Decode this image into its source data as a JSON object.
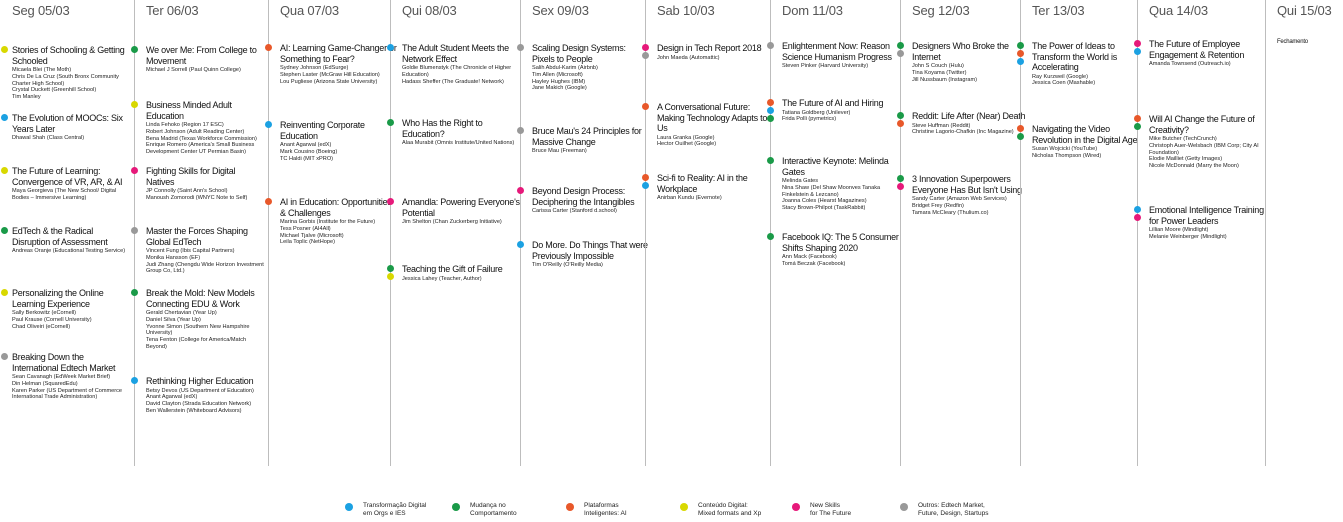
{
  "days": [
    {
      "label": "Seg 05/03",
      "sessions": [
        {
          "colors": [
            "#d8d800"
          ],
          "title": "Stories of Schooling & Getting Schooled",
          "speakers": [
            "Micaela Blei (The Moth)",
            "Chris De La Cruz (South Bronx Community Charter High School)",
            "Crystal Duckett (Greenhill School)",
            "Tim Manley"
          ]
        },
        {
          "colors": [
            "#1ba1e2"
          ],
          "title": "The Evolution of MOOCs: Six Years Later",
          "speakers": [
            "Dhawal Shah (Class Central)"
          ]
        },
        {
          "colors": [
            "#d8d800"
          ],
          "title": "The Future of Learning: Convergence of VR, AR, & AI",
          "speakers": [
            "Maya Georgieva (The New School/ Digital Bodies – Immersive Learning)"
          ]
        },
        {
          "colors": [
            "#1a9a48"
          ],
          "title": "EdTech & the Radical Disruption of Assessment",
          "speakers": [
            "Andreas Oranje (Educational Testing Service)"
          ]
        },
        {
          "colors": [
            "#d8d800"
          ],
          "title": "Personalizing the Online Learning Experience",
          "speakers": [
            "Sally Berkowitz (eCornell)",
            "Paul Krause (Cornell University)",
            "Chad Oliveiri (eCornell)"
          ]
        },
        {
          "colors": [
            "#999999"
          ],
          "title": "Breaking Down the International Edtech Market",
          "speakers": [
            "Sean Cavanagh (EdWeek Market Brief)",
            "Din Helman (SquaredEdu)",
            "Karen Parker (US Department of Commerce International Trade Administration)"
          ]
        }
      ]
    },
    {
      "label": "Ter 06/03",
      "sessions": [
        {
          "colors": [
            "#1a9a48"
          ],
          "title": "We over Me: From College to Movement",
          "speakers": [
            "Michael J Sorrell (Paul Quinn College)"
          ]
        },
        {
          "colors": [
            "#d8d800"
          ],
          "title": "Business Minded Adult Education",
          "speakers": [
            "Linda Fehoko (Region 17 ESC)",
            "Robert Johnson (Adult Reading Center)",
            "Bena Madrid (Texas Workforce Commission)",
            "Enrique Romero (America's Small Business Development Center UT Permian Basin)"
          ]
        },
        {
          "colors": [
            "#e6197a"
          ],
          "title": "Fighting Skills for Digital Natives",
          "speakers": [
            "JP Connolly (Saint Ann's School)",
            "Manoush Zomorodi (WNYC Note to Self)"
          ]
        },
        {
          "colors": [
            "#999999"
          ],
          "title": "Master the Forces Shaping Global EdTech",
          "speakers": [
            "Vincent Fung (Ibis Capital Partners)",
            "Monika Hansson (EF)",
            "Judi Zhang (Chengdu Wide Horizon Investment Group Co, Ltd.)"
          ]
        },
        {
          "colors": [
            "#1a9a48"
          ],
          "title": "Break the Mold: New Models Connecting EDU & Work",
          "speakers": [
            "Gerald Chertavian (Year Up)",
            "Daniel Silva (Year Up)",
            "Yvonne Simon (Southern New Hampshire University)",
            "Tena Fenton (College for America/Match Beyond)"
          ]
        },
        {
          "colors": [
            "#1ba1e2"
          ],
          "title": "Rethinking Higher Education",
          "speakers": [
            "Betsy Devos (US Department of Education)",
            "Anant Agarwal (edX)",
            "David Clayton (Strada Education Network)",
            "Ben Wallerstein (Whiteboard Advisors)"
          ]
        }
      ]
    },
    {
      "label": "Qua 07/03",
      "sessions": [
        {
          "colors": [
            "#e8582a"
          ],
          "title": "AI: Learning Game-Changer or Something to Fear?",
          "speakers": [
            "Sydney Johnson (EdSurge)",
            "Stephen Laster (McGraw Hill Education)",
            "Lou Pugliese (Arizona State University)"
          ]
        },
        {
          "colors": [
            "#1ba1e2"
          ],
          "title": "Reinventing Corporate Education",
          "speakers": [
            "Anant Agarwal (edX)",
            "Mark Cousino (Boeing)",
            "TC Haldi (MIT xPRO)"
          ]
        },
        {
          "colors": [
            "#e8582a"
          ],
          "title": "AI in Education: Opportunities & Challenges",
          "speakers": [
            "Marina Gorbis (Institute for the Future)",
            "Tess Posner (AI4All)",
            "Michael Tjalve (Microsoft)",
            "Leila Toplic (NetHope)"
          ]
        }
      ]
    },
    {
      "label": "Qui 08/03",
      "sessions": [
        {
          "colors": [
            "#1ba1e2"
          ],
          "title": "The Adult Student Meets the Network Effect",
          "speakers": [
            "Goldie Blumenstyk (The Chronicle of Higher Education)",
            "Hadass Sheffer (The Graduate! Network)"
          ]
        },
        {
          "colors": [
            "#1a9a48"
          ],
          "title": "Who Has the Right to Education?",
          "speakers": [
            "Alaa Murabit (Omnis Institute/United Nations)"
          ]
        },
        {
          "colors": [
            "#e6197a"
          ],
          "title": "Amandla: Powering Everyone's Potential",
          "speakers": [
            "Jim Shelton (Chan Zuckerberg Initiative)"
          ]
        },
        {
          "colors": [
            "#1a9a48",
            "#d8d800"
          ],
          "title": "Teaching the Gift of Failure",
          "speakers": [
            "Jessica Lahey (Teacher, Author)"
          ]
        }
      ]
    },
    {
      "label": "Sex 09/03",
      "sessions": [
        {
          "colors": [
            "#999999"
          ],
          "title": "Scaling Design Systems: Pixels to People",
          "speakers": [
            "Salih Abdul-Karim (Airbnb)",
            "Tim Allen (Microsoft)",
            "Hayley Hughes (IBM)",
            "Jane Makich (Google)"
          ]
        },
        {
          "colors": [
            "#999999"
          ],
          "title": "Bruce Mau's 24 Principles for Massive Change",
          "speakers": [
            "Bruce Mau (Freeman)"
          ]
        },
        {
          "colors": [
            "#e6197a"
          ],
          "title": "Beyond Design Process: Deciphering the Intangibles",
          "speakers": [
            "Carissa Carter (Stanford d.school)"
          ]
        },
        {
          "colors": [
            "#1ba1e2"
          ],
          "title": "Do More. Do Things That were Previously Impossible",
          "speakers": [
            "Tim O'Reilly (O'Reilly Media)"
          ]
        }
      ]
    },
    {
      "label": "Sab 10/03",
      "sessions": [
        {
          "colors": [
            "#e6197a",
            "#999999"
          ],
          "title": "Design in Tech Report 2018",
          "speakers": [
            "John Maeda (Automattic)"
          ]
        },
        {
          "colors": [
            "#e8582a"
          ],
          "title": "A Conversational Future: Making Technology Adapts to Us",
          "speakers": [
            "Laura Granka (Google)",
            "Hector Ouilhet (Google)"
          ]
        },
        {
          "colors": [
            "#e8582a",
            "#1ba1e2"
          ],
          "title": "Sci-fi to Reality: AI in the Workplace",
          "speakers": [
            "Anirban Kundu (Evernote)"
          ]
        }
      ]
    },
    {
      "label": "Dom 11/03",
      "sessions": [
        {
          "colors": [
            "#999999"
          ],
          "title": "Enlightenment Now: Reason Science Humanism Progress",
          "speakers": [
            "Steven Pinker (Harvard University)"
          ]
        },
        {
          "colors": [
            "#e8582a",
            "#1ba1e2",
            "#1a9a48"
          ],
          "title": "The Future of AI and Hiring",
          "speakers": [
            "Tatiana Goldberg (Unilever)",
            "Frida Polli (pymetrics)"
          ]
        },
        {
          "colors": [
            "#1a9a48"
          ],
          "title": "Interactive Keynote: Melinda Gates",
          "speakers": [
            "Melinda Gates",
            "Nina Shaw (Del Shaw Moonves Tanaka Finkelstein & Lezcano)",
            "Joanna Coles (Hearst Magazines)",
            "Stacy Brown-Philpot (TaskRabbit)"
          ]
        },
        {
          "colors": [
            "#1a9a48"
          ],
          "title": "Facebook IQ: The 5 Consumer Shifts Shaping 2020",
          "speakers": [
            "Ann Mack (Facebook)",
            "Tomá Beczak (Facebook)"
          ]
        }
      ]
    },
    {
      "label": "Seg 12/03",
      "sessions": [
        {
          "colors": [
            "#1a9a48",
            "#999999"
          ],
          "title": "Designers Who Broke the Internet",
          "speakers": [
            "John S Couch (Hulu)",
            "Tina Koyama (Twitter)",
            "Jill Nussbaum (Instagram)"
          ]
        },
        {
          "colors": [
            "#1a9a48",
            "#e8582a"
          ],
          "title": "Reddit: Life After (Near) Death",
          "speakers": [
            "Steve Huffman (Reddit)",
            "Christine Lagorio-Chafkin (Inc Magazine)"
          ]
        },
        {
          "colors": [
            "#1a9a48",
            "#e6197a"
          ],
          "title": "3 Innovation Superpowers Everyone Has But Isn't Using",
          "speakers": [
            "Sandy Carter (Amazon Web Services)",
            "Bridget Frey (Redfin)",
            "Tamara McCleary (Thulium.co)"
          ]
        }
      ]
    },
    {
      "label": "Ter 13/03",
      "sessions": [
        {
          "colors": [
            "#1a9a48",
            "#e8582a",
            "#1ba1e2"
          ],
          "title": "The Power of Ideas to Transform the World is Accelerating",
          "speakers": [
            "Ray Kurzweil (Google)",
            "Jessica Coen (Mashable)"
          ]
        },
        {
          "colors": [
            "#e8582a",
            "#1a9a48"
          ],
          "title": "Navigating the Video Revolution in the Digital Age",
          "speakers": [
            "Susan Wojcicki (YouTube)",
            "Nicholas Thompson (Wired)"
          ]
        }
      ]
    },
    {
      "label": "Qua 14/03",
      "sessions": [
        {
          "colors": [
            "#e6197a",
            "#1ba1e2"
          ],
          "title": "The Future of Employee Engagement & Retention",
          "speakers": [
            "Amanda Townsend (Outreach.io)"
          ]
        },
        {
          "colors": [
            "#e8582a",
            "#1a9a48"
          ],
          "title": "Will AI Change the Future of Creativity?",
          "speakers": [
            "Mike Butcher (TechCrunch)",
            "Christoph Auer-Welsbach (IBM Corp; City AI Foundation)",
            "Elodie Mailliet (Getty Images)",
            "Nicole McDonnald (Marry the Moon)"
          ]
        },
        {
          "colors": [
            "#1ba1e2",
            "#e6197a"
          ],
          "title": "Emotional Intelligence Training for Power Leaders",
          "speakers": [
            "Lillian Moore (Mindlight)",
            "Melanie Weinberger (Mindlight)"
          ]
        }
      ]
    },
    {
      "label": "Qui 15/03",
      "sessions": [
        {
          "colors": [],
          "title": "Fechamento",
          "speakers": []
        }
      ]
    }
  ],
  "legend": [
    {
      "color": "#1ba1e2",
      "lines": [
        "Transformação Digital",
        "em Orgs e IES"
      ]
    },
    {
      "color": "#1a9a48",
      "lines": [
        "Mudança no",
        "Comportamento"
      ]
    },
    {
      "color": "#e8582a",
      "lines": [
        "Plataformas",
        "Inteligentes: AI"
      ]
    },
    {
      "color": "#d8d800",
      "lines": [
        "Conteúdo Digital:",
        "Mixed formats and Xp"
      ]
    },
    {
      "color": "#e6197a",
      "lines": [
        "New Skills",
        "for The Future"
      ]
    },
    {
      "color": "#999999",
      "lines": [
        "Outros: Edtech Market,",
        "Future, Design, Startups"
      ]
    }
  ]
}
